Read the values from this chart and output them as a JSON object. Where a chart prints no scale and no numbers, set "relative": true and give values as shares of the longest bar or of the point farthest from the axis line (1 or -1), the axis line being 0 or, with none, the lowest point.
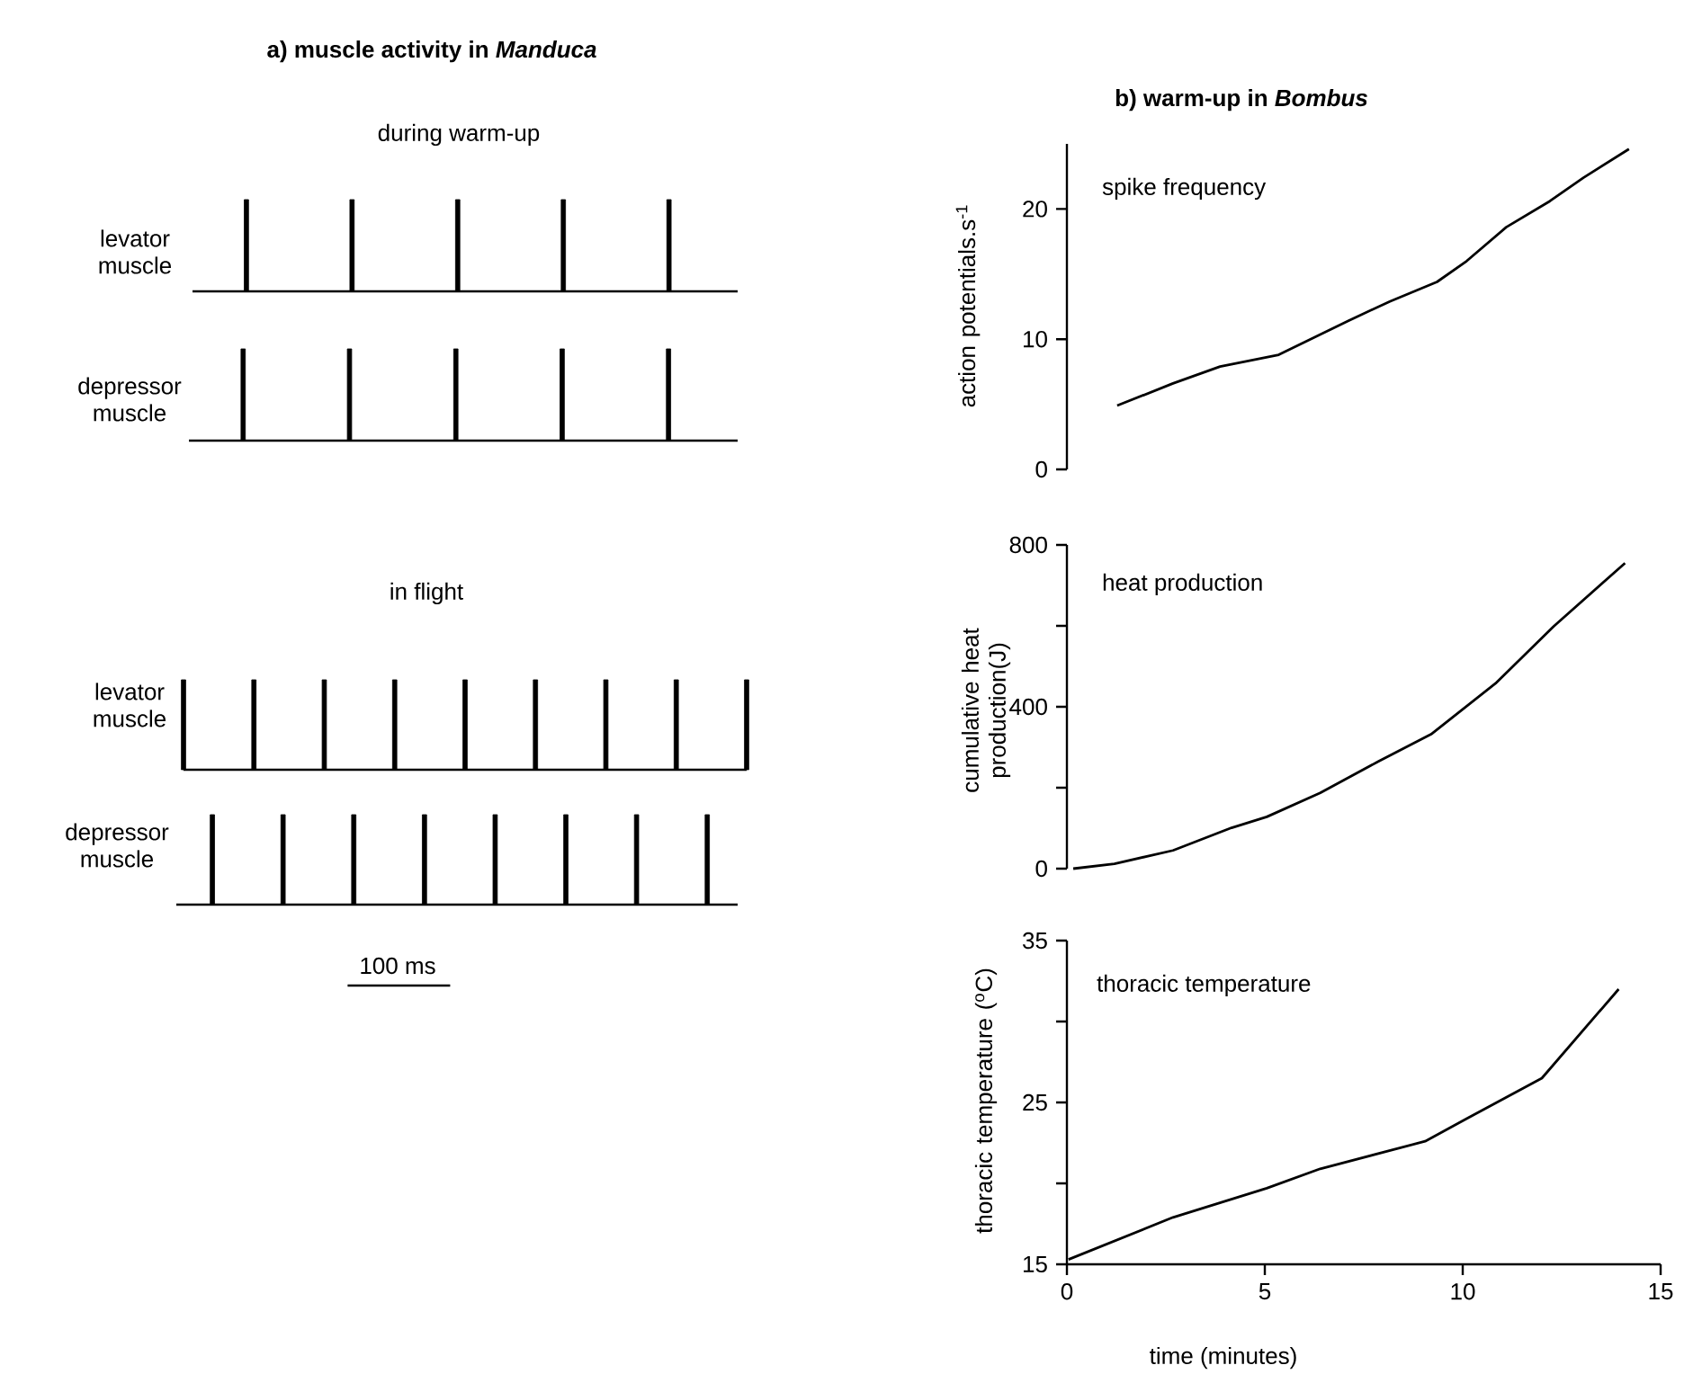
{
  "chart_data": [
    {
      "type": "bar",
      "relative": true,
      "title": "**a)** muscle activity in *Manduca*",
      "subtitle": "during warm-up",
      "ylabel": "levator muscle",
      "categories": [
        null,
        null,
        null,
        null,
        null
      ],
      "values": [
        1,
        1,
        1,
        1,
        1
      ],
      "color": "#000000"
    },
    {
      "type": "bar",
      "relative": true,
      "ylabel": "depressor muscle",
      "categories": [
        null,
        null,
        null,
        null,
        null
      ],
      "values": [
        1,
        1,
        1,
        1,
        1
      ],
      "color": "#000000"
    },
    {
      "type": "bar",
      "relative": true,
      "subtitle": "in flight",
      "ylabel": "levator muscle",
      "categories": [
        null,
        null,
        null,
        null,
        null,
        null,
        null,
        null,
        null
      ],
      "values": [
        1,
        1,
        1,
        1,
        1,
        1,
        1,
        1,
        1
      ],
      "color": "#000000"
    },
    {
      "type": "bar",
      "relative": true,
      "ylabel": "depressor muscle",
      "annotations": [
        "100 ms"
      ],
      "categories": [
        null,
        null,
        null,
        null,
        null,
        null,
        null,
        null
      ],
      "values": [
        1,
        1,
        1,
        1,
        1,
        1,
        1,
        1
      ],
      "color": "#000000"
    },
    {
      "type": "line",
      "title": "**b)** warm-up in *Bombus*",
      "annotations": [
        "spike frequency"
      ],
      "ylabel": "action potentials.s$^{-1}$",
      "x": [
        1.27,
        2.68,
        3.87,
        5.35,
        7.1,
        8.16,
        9.35,
        10.1,
        11.1,
        12.2,
        13.05,
        14.2
      ],
      "values": [
        4.9,
        6.6,
        7.9,
        8.8,
        11.4,
        12.9,
        14.4,
        16.0,
        18.6,
        20.6,
        22.4,
        24.6
      ],
      "color": "#000000",
      "xlim": [
        0,
        15
      ],
      "ylim": [
        0,
        25
      ],
      "yticks": [
        0,
        10,
        20
      ],
      "tick_labels": "y"
    },
    {
      "type": "line",
      "annotations": [
        "heat production"
      ],
      "ylabel": "cumulative heat production(J)",
      "x": [
        0.16,
        1.2,
        2.68,
        4.16,
        5.05,
        6.4,
        7.87,
        9.2,
        10.83,
        12.3,
        14.1
      ],
      "values": [
        0,
        12,
        45,
        101,
        128,
        187,
        265,
        332,
        458,
        599,
        755
      ],
      "color": "#000000",
      "xlim": [
        0,
        15
      ],
      "ylim": [
        0,
        800
      ],
      "yticks": [
        0,
        {
          "value": 200,
          "label": null
        },
        400,
        {
          "value": 600,
          "label": null
        },
        800
      ],
      "tick_labels": "y"
    },
    {
      "type": "line",
      "annotations": [
        "thoracic temperature"
      ],
      "ylabel": "thoracic temperature ($^{o}$C)",
      "xlabel": "time (minutes)",
      "x": [
        0.04,
        2.68,
        5.05,
        6.4,
        9.05,
        10.1,
        12.0,
        13.94
      ],
      "values": [
        15.3,
        17.9,
        19.7,
        20.9,
        22.6,
        24.0,
        26.5,
        32.0
      ],
      "color": "#000000",
      "xlim": [
        0,
        15
      ],
      "ylim": [
        15,
        35
      ],
      "xticks": [
        0,
        5,
        10,
        15
      ],
      "yticks": [
        15,
        {
          "value": 20,
          "label": null
        },
        25,
        {
          "value": 30,
          "label": null
        },
        35
      ]
    }
  ]
}
